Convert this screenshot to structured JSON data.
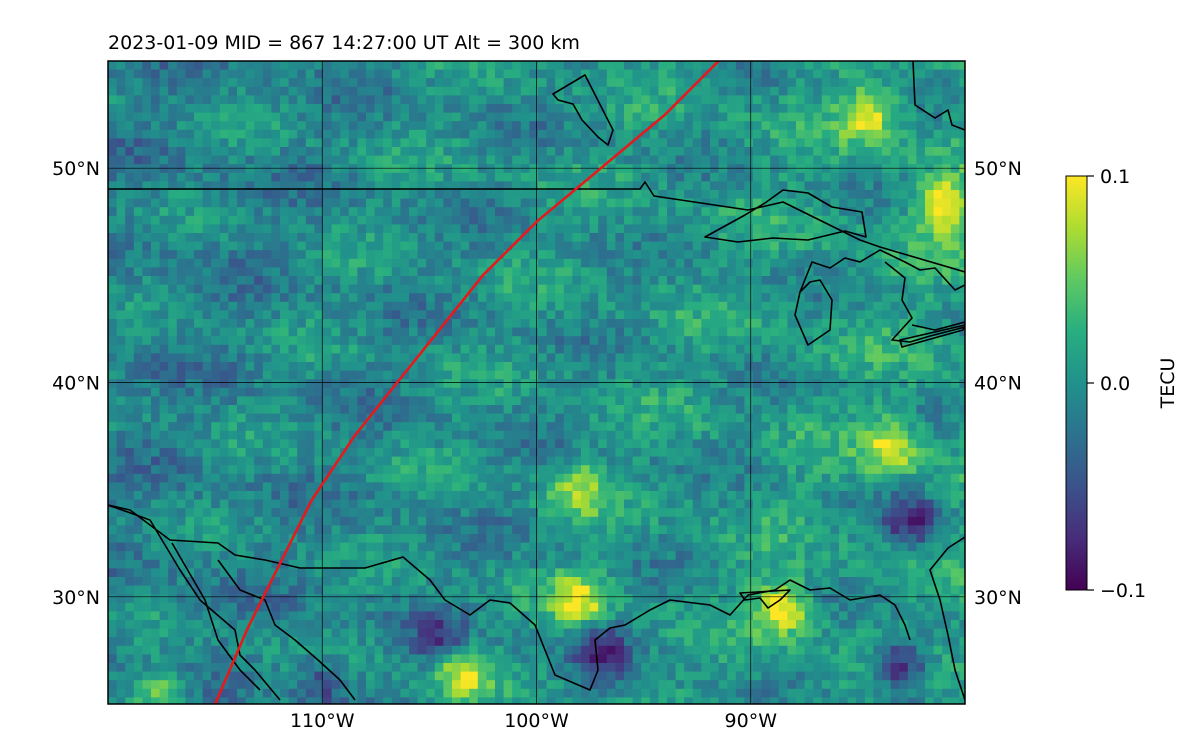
{
  "header": {
    "title": "2023-01-09  MID = 867    14:27:00  UT  Alt = 300 km"
  },
  "map": {
    "lon_range": [
      -120,
      -80
    ],
    "lat_range": [
      25,
      55
    ],
    "lon_ticks": [
      {
        "value": -110,
        "label": "110°W"
      },
      {
        "value": -100,
        "label": "100°W"
      },
      {
        "value": -90,
        "label": "90°W"
      }
    ],
    "lat_ticks": [
      {
        "value": 30,
        "label": "30°N"
      },
      {
        "value": 40,
        "label": "40°N"
      },
      {
        "value": 50,
        "label": "50°N"
      }
    ],
    "gridlines": true,
    "track_color": "#e41a1c",
    "track": [
      [
        -115.0,
        25.0
      ],
      [
        -113.5,
        28.5
      ],
      [
        -112.0,
        31.5
      ],
      [
        -110.5,
        34.5
      ],
      [
        -108.5,
        37.5
      ],
      [
        -106.5,
        40.0
      ],
      [
        -104.5,
        42.5
      ],
      [
        -102.5,
        45.0
      ],
      [
        -100.0,
        47.5
      ],
      [
        -97.0,
        50.0
      ],
      [
        -94.0,
        52.5
      ],
      [
        -91.5,
        55.0
      ]
    ],
    "coastline_color": "#000000"
  },
  "colorbar": {
    "label": "TECU",
    "min": -0.1,
    "max": 0.1,
    "ticks": [
      {
        "value": 0.1,
        "label": "0.1"
      },
      {
        "value": 0.0,
        "label": "0.0"
      },
      {
        "value": -0.1,
        "label": "−0.1"
      }
    ],
    "colormap": "viridis"
  },
  "chart_data": {
    "type": "heatmap",
    "title": "2023-01-09  MID = 867    14:27:00  UT  Alt = 300 km",
    "xlabel": "",
    "ylabel": "",
    "x_range": [
      -120,
      -80
    ],
    "y_range": [
      25,
      55
    ],
    "colorbar_label": "TECU",
    "value_range": [
      -0.1,
      0.1
    ],
    "base_level": 0.0,
    "hotspots": [
      {
        "lon": -84.5,
        "lat": 52.5,
        "value": 0.08
      },
      {
        "lon": -81.0,
        "lat": 48.2,
        "value": 0.1
      },
      {
        "lon": -83.5,
        "lat": 37.0,
        "value": 0.08
      },
      {
        "lon": -88.5,
        "lat": 29.5,
        "value": 0.1
      },
      {
        "lon": -98.0,
        "lat": 29.8,
        "value": 0.09
      },
      {
        "lon": -103.5,
        "lat": 26.5,
        "value": 0.09
      },
      {
        "lon": -117.5,
        "lat": 25.5,
        "value": 0.07
      },
      {
        "lon": -98.0,
        "lat": 35.0,
        "value": 0.06
      },
      {
        "lon": -83.0,
        "lat": 26.8,
        "value": -0.1
      },
      {
        "lon": -82.5,
        "lat": 33.5,
        "value": -0.08
      },
      {
        "lon": -97.0,
        "lat": 27.5,
        "value": -0.07
      },
      {
        "lon": -104.5,
        "lat": 28.0,
        "value": -0.06
      },
      {
        "lon": -110.0,
        "lat": 26.0,
        "value": -0.05
      }
    ]
  }
}
